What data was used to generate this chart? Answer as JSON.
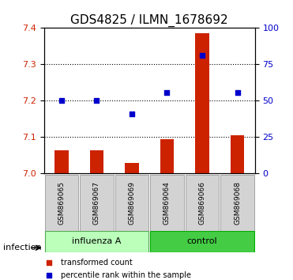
{
  "title": "GDS4825 / ILMN_1678692",
  "samples": [
    "GSM869065",
    "GSM869067",
    "GSM869069",
    "GSM869064",
    "GSM869066",
    "GSM869068"
  ],
  "groups": [
    "influenza A",
    "influenza A",
    "influenza A",
    "control",
    "control",
    "control"
  ],
  "group_labels": [
    "influenza A",
    "control"
  ],
  "group_colors": [
    "#aaffaa",
    "#00cc00"
  ],
  "bar_values": [
    7.065,
    7.065,
    7.03,
    7.095,
    7.385,
    7.105
  ],
  "dot_values": [
    7.2,
    7.2,
    7.165,
    7.222,
    7.325,
    7.222
  ],
  "ylim": [
    7.0,
    7.4
  ],
  "yticks_left": [
    7.0,
    7.1,
    7.2,
    7.3,
    7.4
  ],
  "yticks_right": [
    0,
    25,
    50,
    75,
    100
  ],
  "bar_color": "#cc2200",
  "dot_color": "#0000cc",
  "bar_base": 7.0,
  "grid_color": "#000000",
  "bg_color": "#ffffff",
  "legend_items": [
    "transformed count",
    "percentile rank within the sample"
  ],
  "infection_label": "infection",
  "axis_label_fontsize": 8,
  "tick_fontsize": 8,
  "title_fontsize": 11
}
